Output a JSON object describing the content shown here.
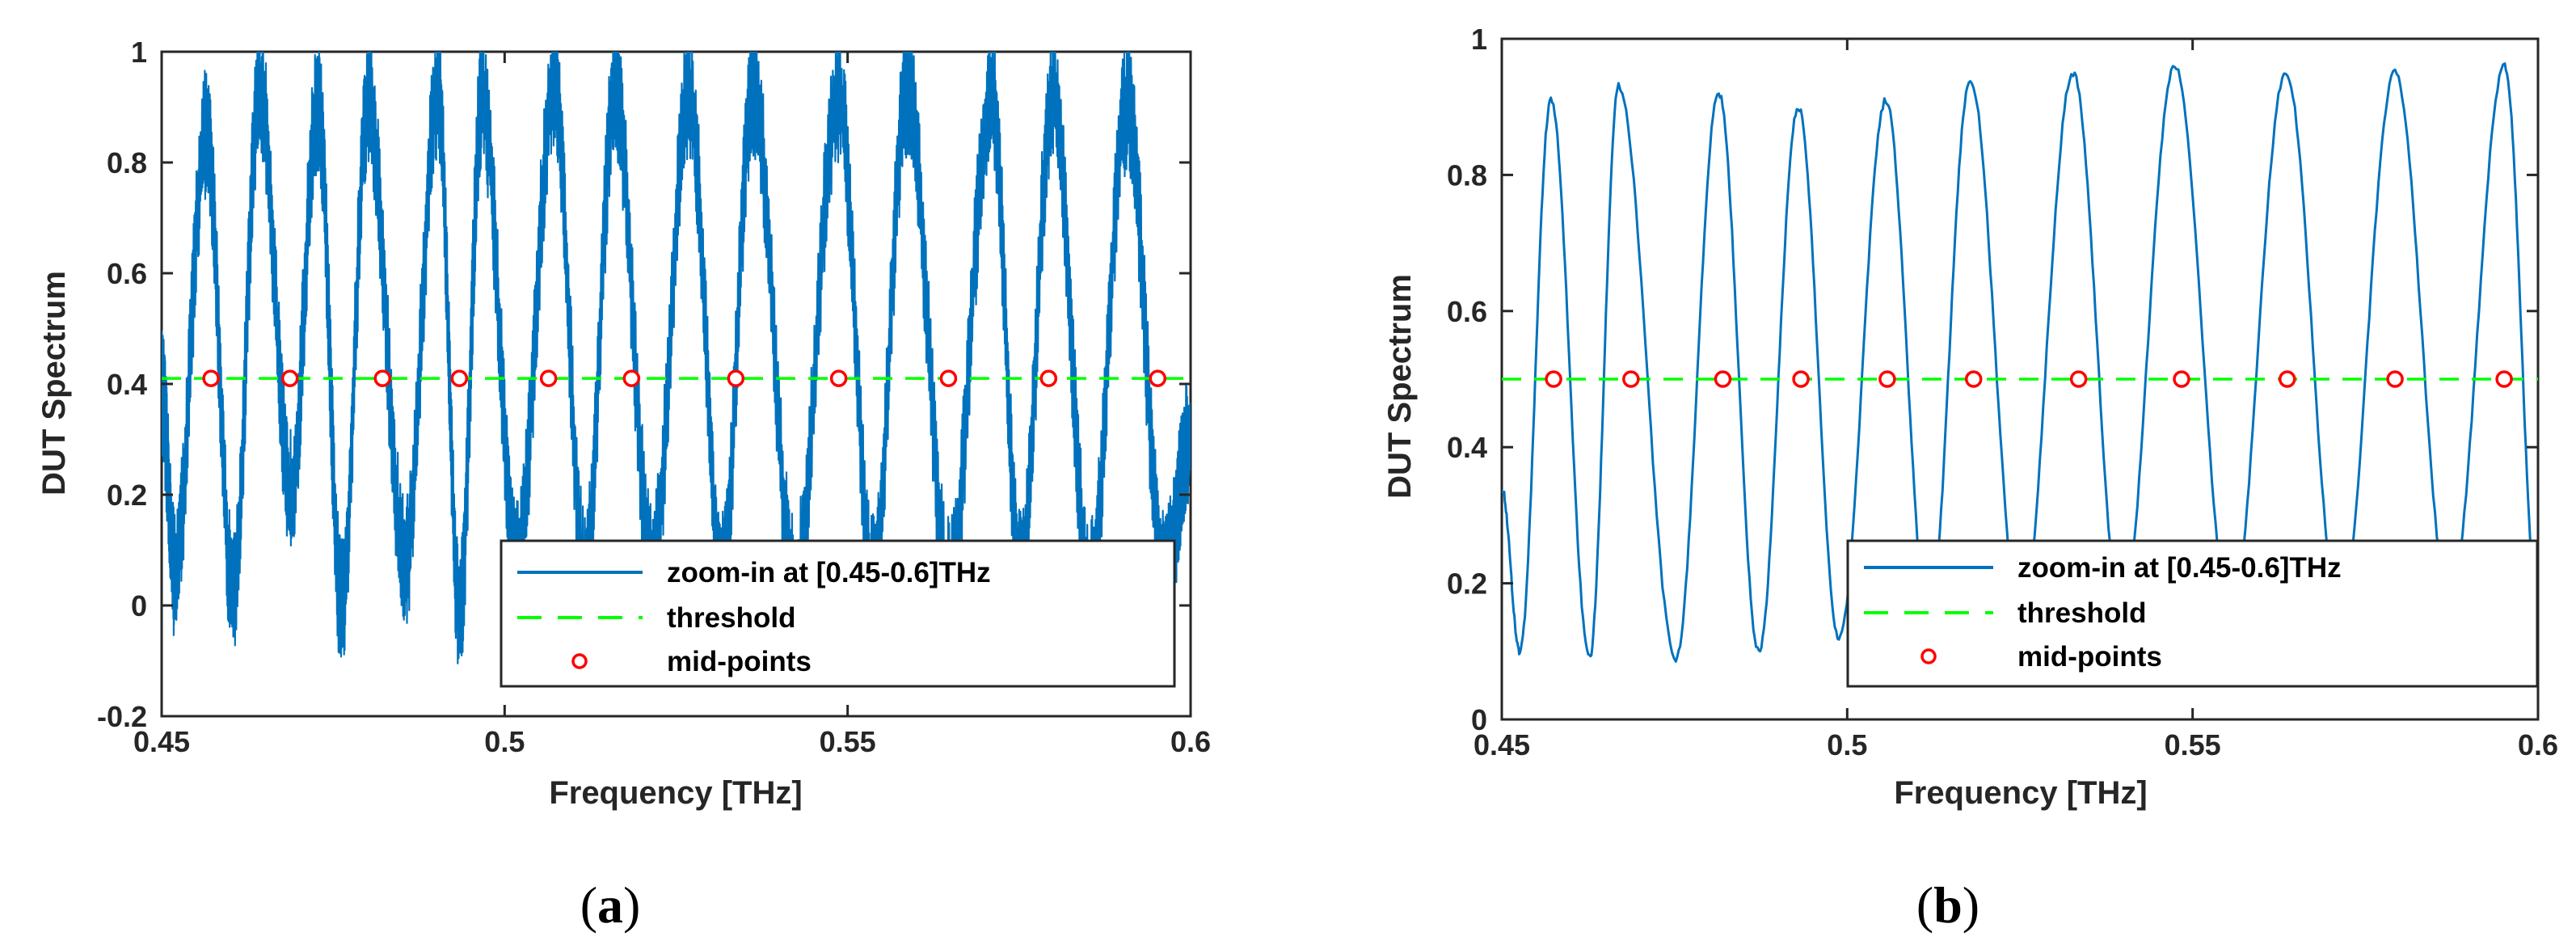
{
  "colors": {
    "signal": "#0072BD",
    "threshold": "#00FF00",
    "midpoint": "#FF0000",
    "axis": "#262626"
  },
  "chart_data": [
    {
      "id": "a",
      "type": "line",
      "caption": "a",
      "xlabel": "Frequency [THz]",
      "ylabel": "DUT Spectrum",
      "xlim": [
        0.45,
        0.6
      ],
      "ylim": [
        -0.2,
        1.0
      ],
      "xticks": [
        0.45,
        0.5,
        0.55,
        0.6
      ],
      "xtick_labels": [
        "0.45",
        "0.5",
        "0.55",
        "0.6"
      ],
      "yticks": [
        -0.2,
        0,
        0.2,
        0.4,
        0.6,
        0.8,
        1.0
      ],
      "ytick_labels": [
        "-0.2",
        "0",
        "0.2",
        "0.4",
        "0.6",
        "0.8",
        "1"
      ],
      "legend_position": "bottom-right",
      "series": [
        {
          "name": "zoom-in at [0.45-0.6]THz",
          "style": "noisy-line",
          "x": [
            0.45,
            0.4519,
            0.4565,
            0.4604,
            0.4643,
            0.4688,
            0.4728,
            0.4762,
            0.4801,
            0.4855,
            0.4903,
            0.4934,
            0.4967,
            0.5018,
            0.5072,
            0.5117,
            0.5161,
            0.5215,
            0.5269,
            0.5317,
            0.5362,
            0.5423,
            0.5487,
            0.5537,
            0.5587,
            0.5648,
            0.571,
            0.5752,
            0.5799,
            0.5853,
            0.5907,
            0.5962,
            0.6
          ],
          "y": [
            0.38,
            0.06,
            0.85,
            0.02,
            0.93,
            0.2,
            0.9,
            0.0,
            0.9,
            0.08,
            0.93,
            -0.02,
            0.91,
            0.08,
            0.93,
            0.06,
            0.92,
            0.07,
            0.92,
            0.05,
            0.93,
            0.04,
            0.92,
            0.05,
            0.93,
            0.04,
            0.92,
            0.05,
            0.92,
            0.04,
            0.9,
            0.05,
            0.3
          ],
          "noise_amplitude": 0.12
        },
        {
          "name": "threshold",
          "style": "dashed",
          "x": [
            0.45,
            0.6
          ],
          "y": [
            0.41,
            0.41
          ]
        },
        {
          "name": "mid-points",
          "style": "markers",
          "x": [
            0.4572,
            0.4687,
            0.4822,
            0.4934,
            0.5064,
            0.5185,
            0.5337,
            0.5487,
            0.5647,
            0.5793,
            0.5952
          ],
          "y": [
            0.41,
            0.41,
            0.41,
            0.41,
            0.41,
            0.41,
            0.41,
            0.41,
            0.41,
            0.41,
            0.41
          ]
        }
      ]
    },
    {
      "id": "b",
      "type": "line",
      "caption": "b",
      "xlabel": "Frequency [THz]",
      "ylabel": "DUT Spectrum",
      "xlim": [
        0.45,
        0.6
      ],
      "ylim": [
        0,
        1.0
      ],
      "xticks": [
        0.45,
        0.5,
        0.55,
        0.6
      ],
      "xtick_labels": [
        "0.45",
        "0.5",
        "0.55",
        "0.6"
      ],
      "yticks": [
        0,
        0.2,
        0.4,
        0.6,
        0.8,
        1.0
      ],
      "ytick_labels": [
        "0",
        "0.2",
        "0.4",
        "0.6",
        "0.8",
        "1"
      ],
      "legend_position": "bottom-right",
      "series": [
        {
          "name": "zoom-in at [0.45-0.6]THz",
          "style": "line",
          "x": [
            0.45,
            0.4526,
            0.4571,
            0.4627,
            0.4669,
            0.4752,
            0.4814,
            0.4872,
            0.4929,
            0.4988,
            0.5056,
            0.5118,
            0.5178,
            0.5251,
            0.5327,
            0.5397,
            0.5474,
            0.5555,
            0.5635,
            0.5713,
            0.5793,
            0.5872,
            0.5952,
            0.6
          ],
          "y": [
            0.34,
            0.1,
            0.91,
            0.09,
            0.93,
            0.09,
            0.92,
            0.1,
            0.9,
            0.12,
            0.91,
            0.14,
            0.94,
            0.14,
            0.95,
            0.15,
            0.96,
            0.15,
            0.95,
            0.15,
            0.95,
            0.17,
            0.96,
            0.16
          ]
        },
        {
          "name": "threshold",
          "style": "dashed",
          "x": [
            0.45,
            0.6
          ],
          "y": [
            0.5,
            0.5
          ]
        },
        {
          "name": "mid-points",
          "style": "markers",
          "x": [
            0.4575,
            0.4687,
            0.482,
            0.4933,
            0.5058,
            0.5183,
            0.5335,
            0.5484,
            0.5637,
            0.5793,
            0.5951
          ],
          "y": [
            0.5,
            0.5,
            0.5,
            0.5,
            0.5,
            0.5,
            0.5,
            0.5,
            0.5,
            0.5,
            0.5
          ]
        }
      ]
    }
  ]
}
